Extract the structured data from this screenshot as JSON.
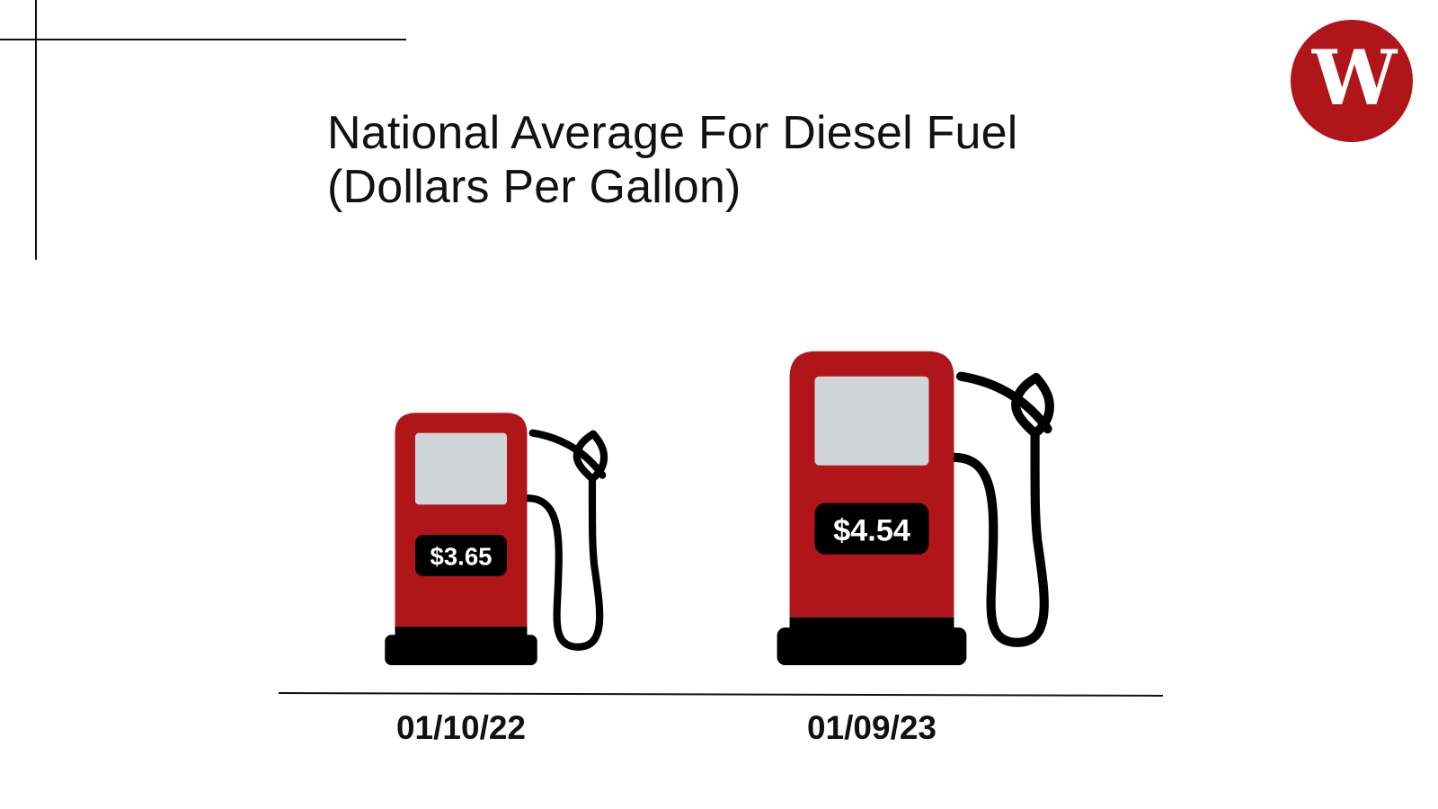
{
  "colors": {
    "pump_body": "#b0151a",
    "pump_screen": "#d0d5da",
    "dark": "#000000",
    "text": "#111111",
    "logo": "#b0151a"
  },
  "logo": {
    "text": "W",
    "icon": "newspaper-w-logo"
  },
  "chart_data": {
    "type": "bar",
    "title": "National Average For Diesel Fuel",
    "subtitle": "(Dollars Per Gallon)",
    "categories": [
      "01/10/22",
      "01/09/23"
    ],
    "values": [
      3.65,
      4.54
    ],
    "value_labels": [
      "$3.65",
      "$4.54"
    ],
    "mark_icon": "gas-pump-icon",
    "xlabel": "",
    "ylabel": ""
  }
}
